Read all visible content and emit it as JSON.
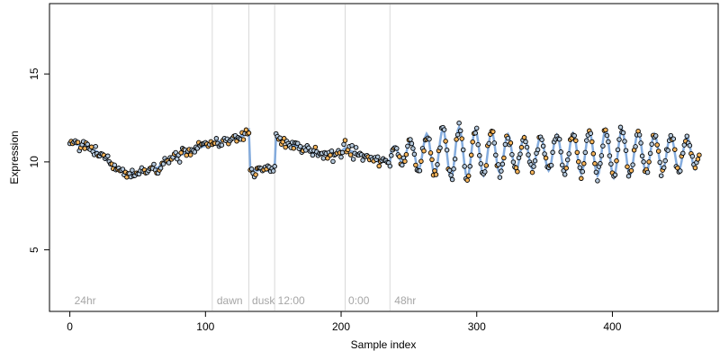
{
  "chart_data": {
    "type": "scatter",
    "title": "",
    "xlabel": "Sample index",
    "ylabel": "Expression",
    "xlim": [
      -15,
      478
    ],
    "ylim": [
      1.5,
      19
    ],
    "x_ticks": [
      0,
      100,
      200,
      300,
      400
    ],
    "y_ticks": [
      5,
      10,
      15
    ],
    "grid": false,
    "legend": "none",
    "colors": {
      "point_fill_light": "#b4c8dc",
      "point_fill_orange": "#f6b45a",
      "line_blue": "#6f9ed8",
      "line_orange": "#f0a030",
      "separator": "#d9d9d9",
      "phase_text": "#a6a6a6"
    },
    "separators": [
      105,
      132,
      151,
      203,
      236
    ],
    "phase_labels": [
      {
        "text": "24hr",
        "x": 2
      },
      {
        "text": "dawn",
        "x": 107
      },
      {
        "text": "dusk",
        "x": 133
      },
      {
        "text": "12:00",
        "x": 152
      },
      {
        "text": "0:00",
        "x": 204
      },
      {
        "text": "48hr",
        "x": 238
      }
    ],
    "segments": [
      {
        "x": [
          0,
          10,
          20,
          30,
          40,
          50,
          60,
          66
        ],
        "y": [
          11.1,
          10.9,
          10.6,
          9.9,
          9.4,
          9.3,
          9.6,
          9.7
        ]
      },
      {
        "x": [
          66,
          75,
          85,
          95,
          104
        ],
        "y": [
          9.9,
          10.2,
          10.5,
          10.8,
          11.0
        ]
      },
      {
        "x": [
          105,
          112,
          120,
          128,
          132
        ],
        "y": [
          11.1,
          11.2,
          11.3,
          11.5,
          11.8
        ]
      },
      {
        "x": [
          133,
          138,
          143,
          148,
          151
        ],
        "y": [
          9.6,
          9.5,
          9.6,
          9.4,
          9.7
        ]
      },
      {
        "x": [
          152,
          160,
          170,
          180,
          190,
          200,
          203
        ],
        "y": [
          11.4,
          11.1,
          10.8,
          10.5,
          10.4,
          10.6,
          10.8
        ]
      },
      {
        "x": [
          204,
          212,
          220,
          228,
          236
        ],
        "y": [
          10.7,
          10.5,
          10.2,
          10.0,
          10.0
        ]
      }
    ],
    "oscillation": {
      "x_start": 236,
      "x_end": 462,
      "period": 12,
      "mean": 10.5,
      "amplitude": [
        [
          236,
          0.3
        ],
        [
          270,
          1.3
        ],
        [
          285,
          1.5
        ],
        [
          320,
          1.1
        ],
        [
          340,
          0.9
        ],
        [
          380,
          1.2
        ],
        [
          400,
          1.4
        ],
        [
          420,
          1.2
        ],
        [
          440,
          1.0
        ],
        [
          462,
          0.9
        ]
      ]
    },
    "points": {
      "n": 465,
      "spread": 0.35,
      "seed": 17
    }
  }
}
